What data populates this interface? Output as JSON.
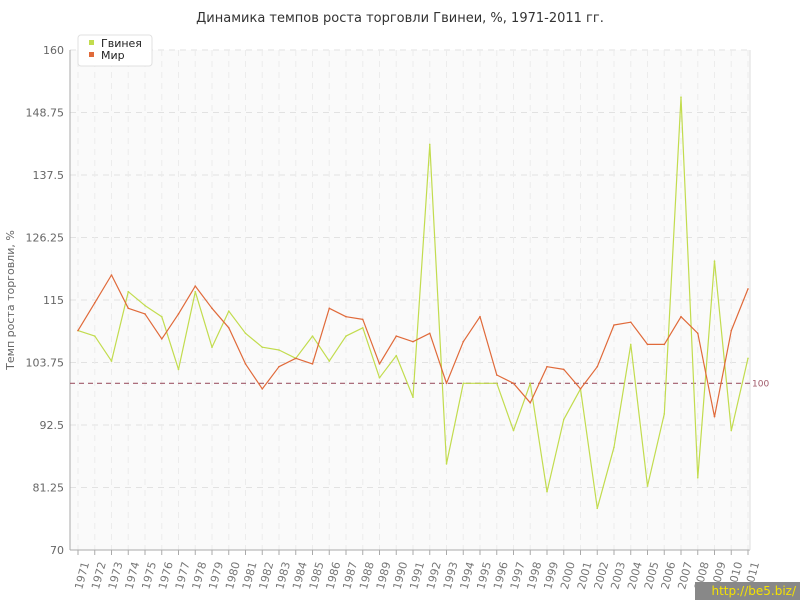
{
  "chart_data": {
    "type": "line",
    "title": "Динамика темпов роста торговли Гвинеи, %, 1971-2011 гг.",
    "xlabel": "",
    "ylabel": "Темп роста торговли, %",
    "ylim": [
      70,
      160
    ],
    "yticks": [
      "70",
      "81.25",
      "92.5",
      "103.75",
      "115",
      "126.25",
      "137.5",
      "148.75",
      "160"
    ],
    "grid": true,
    "legend_position": "top-left",
    "reference_line": {
      "value": 100,
      "label": "100",
      "color": "#a05a6a"
    },
    "categories": [
      "1971",
      "1972",
      "1973",
      "1974",
      "1975",
      "1976",
      "1977",
      "1978",
      "1979",
      "1980",
      "1981",
      "1982",
      "1983",
      "1984",
      "1985",
      "1986",
      "1987",
      "1988",
      "1989",
      "1990",
      "1991",
      "1992",
      "1993",
      "1994",
      "1995",
      "1996",
      "1997",
      "1998",
      "1999",
      "2000",
      "2001",
      "2002",
      "2003",
      "2004",
      "2005",
      "2006",
      "2007",
      "2008",
      "2009",
      "2010",
      "2011"
    ],
    "series": [
      {
        "name": "Гвинея",
        "color": "#c2dc4e",
        "values": [
          109.5,
          108.5,
          104,
          116.5,
          114,
          112,
          102.5,
          116.5,
          106.5,
          113,
          109,
          106.5,
          106,
          104.5,
          108.5,
          104,
          108.5,
          110,
          101,
          105,
          97.5,
          143,
          85.5,
          100,
          100,
          100,
          91.5,
          100,
          80.5,
          93.5,
          99,
          77.5,
          88.5,
          107,
          81.5,
          94.5,
          151.5,
          83,
          122,
          91.5,
          104.5
        ]
      },
      {
        "name": "Мир",
        "color": "#e06a3a",
        "values": [
          109.5,
          114.5,
          119.5,
          113.5,
          112.5,
          108,
          112.5,
          117.5,
          113.5,
          110,
          103.5,
          99,
          103,
          104.5,
          103.5,
          113.5,
          112,
          111.5,
          103.5,
          108.5,
          107.5,
          109,
          100,
          107.5,
          112,
          101.5,
          100,
          96.5,
          103,
          102.5,
          99,
          103,
          110.5,
          111,
          107,
          107,
          112,
          109,
          94,
          109.5,
          117
        ]
      }
    ]
  }
}
